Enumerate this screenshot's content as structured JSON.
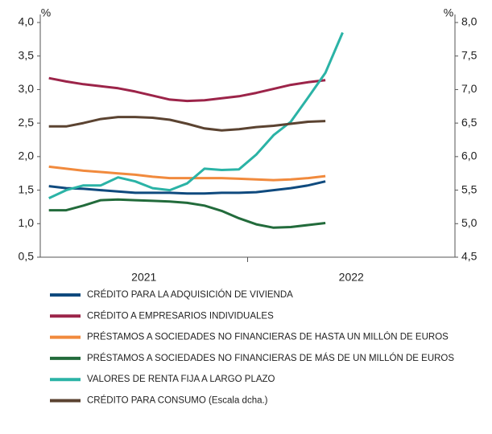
{
  "chart_data": {
    "type": "line",
    "y_unit": "%",
    "y2_unit": "%",
    "categories": [
      null,
      null,
      null,
      null,
      null,
      null,
      null,
      null,
      null,
      null,
      null,
      null,
      null,
      null,
      null,
      null,
      null,
      null
    ],
    "x_groups": [
      "2021",
      "2022"
    ],
    "ylim": [
      0.5,
      4.0
    ],
    "yticks": [
      {
        "value": 0.5,
        "label": "0,5"
      },
      {
        "value": 1.0,
        "label": "1,0"
      },
      {
        "value": 1.5,
        "label": "1,5"
      },
      {
        "value": 2.0,
        "label": "2,0"
      },
      {
        "value": 2.5,
        "label": "2,5"
      },
      {
        "value": 3.0,
        "label": "3,0"
      },
      {
        "value": 3.5,
        "label": "3,5"
      },
      {
        "value": 4.0,
        "label": "4,0"
      }
    ],
    "y2lim": [
      4.5,
      8.0
    ],
    "y2ticks": [
      {
        "value": 4.5,
        "label": "4,5"
      },
      {
        "value": 5.0,
        "label": "5,0"
      },
      {
        "value": 5.5,
        "label": "5,5"
      },
      {
        "value": 6.0,
        "label": "6,0"
      },
      {
        "value": 6.5,
        "label": "6,5"
      },
      {
        "value": 7.0,
        "label": "7,0"
      },
      {
        "value": 7.5,
        "label": "7,5"
      },
      {
        "value": 8.0,
        "label": "8,0"
      }
    ],
    "grid": false,
    "series": [
      {
        "name": "CRÉDITO PARA LA ADQUISICIÓN DE VIVIENDA",
        "color": "#0f4a7e",
        "values": [
          1.56,
          1.53,
          1.52,
          1.5,
          1.48,
          1.46,
          1.46,
          1.46,
          1.45,
          1.45,
          1.46,
          1.46,
          1.47,
          1.5,
          1.53,
          1.57,
          1.63,
          null
        ]
      },
      {
        "name": "CRÉDITO A EMPRESARIOS INDIVIDUALES",
        "color": "#9c2449",
        "values": [
          3.17,
          3.12,
          3.08,
          3.05,
          3.02,
          2.97,
          2.91,
          2.85,
          2.83,
          2.84,
          2.87,
          2.9,
          2.95,
          3.01,
          3.07,
          3.11,
          3.14,
          null
        ]
      },
      {
        "name": "PRÉSTAMOS A SOCIEDADES NO FINANCIERAS DE HASTA UN MILLÓN DE EUROS",
        "color": "#f18a3d",
        "values": [
          1.85,
          1.82,
          1.79,
          1.77,
          1.75,
          1.73,
          1.7,
          1.68,
          1.68,
          1.68,
          1.68,
          1.67,
          1.66,
          1.65,
          1.66,
          1.68,
          1.71,
          null
        ]
      },
      {
        "name": "PRÉSTAMOS A SOCIEDADES NO FINANCIERAS DE MÁS DE UN MILLÓN DE EUROS",
        "color": "#226b3b",
        "values": [
          1.2,
          1.2,
          1.27,
          1.35,
          1.36,
          1.35,
          1.34,
          1.33,
          1.31,
          1.27,
          1.19,
          1.08,
          0.99,
          0.94,
          0.95,
          0.98,
          1.01,
          null
        ]
      },
      {
        "name": "VALORES DE RENTA FIJA A LARGO PLAZO",
        "color": "#2bb3a6",
        "values": [
          1.38,
          1.5,
          1.57,
          1.57,
          1.69,
          1.63,
          1.53,
          1.5,
          1.6,
          1.82,
          1.8,
          1.81,
          2.03,
          2.32,
          2.52,
          2.88,
          3.25,
          3.85
        ]
      },
      {
        "name": "CRÉDITO PARA CONSUMO (Escala dcha.)",
        "color": "#5b4331",
        "axis": "y2",
        "values": [
          6.45,
          6.45,
          6.5,
          6.56,
          6.59,
          6.59,
          6.58,
          6.55,
          6.49,
          6.42,
          6.39,
          6.41,
          6.44,
          6.46,
          6.49,
          6.52,
          6.53,
          null
        ]
      }
    ]
  }
}
